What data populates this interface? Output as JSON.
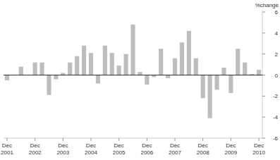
{
  "chart_data": {
    "type": "bar",
    "y_label": "%change",
    "categories": [
      "Dec 2001",
      null,
      null,
      null,
      "Dec 2002",
      null,
      null,
      null,
      "Dec 2003",
      null,
      null,
      null,
      "Dec 2004",
      null,
      null,
      null,
      "Dec 2005",
      null,
      null,
      null,
      "Dec 2006",
      null,
      null,
      null,
      "Dec 2007",
      null,
      null,
      null,
      "Dec 2008",
      null,
      null,
      null,
      "Dec 2009",
      null,
      null,
      null,
      "Dec 2010"
    ],
    "values": [
      -0.5,
      0,
      0.8,
      0,
      1.2,
      1.2,
      -1.9,
      -0.4,
      0.2,
      1.2,
      1.8,
      2.8,
      2.1,
      -0.8,
      2.8,
      2.1,
      0.9,
      2.0,
      4.8,
      0.3,
      -0.9,
      -0.2,
      2.5,
      -0.3,
      1.6,
      3.1,
      4.2,
      1.6,
      -2.2,
      -4.1,
      -1.4,
      0.7,
      -1.7,
      2.5,
      1.2,
      0.1,
      0.5
    ],
    "color": "#bdbdbd",
    "ylim": [
      -6,
      6
    ],
    "yticks": [
      -6,
      -4,
      -2,
      0,
      2,
      4,
      6
    ]
  }
}
